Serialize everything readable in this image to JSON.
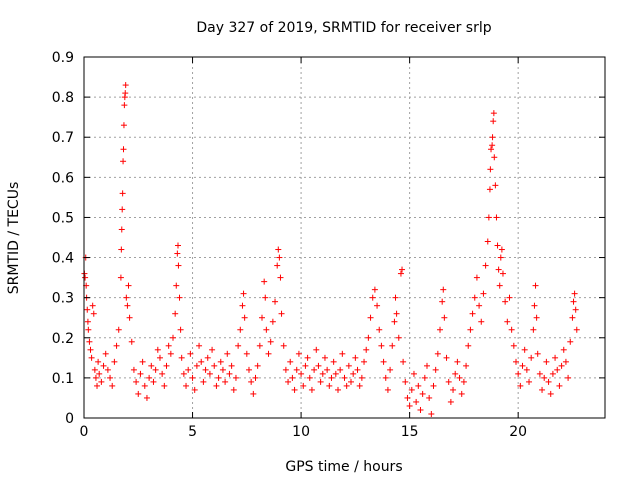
{
  "chart_data": {
    "type": "scatter",
    "title": "Day 327 of 2019, SRMTID for receiver srlp",
    "xlabel": "GPS time / hours",
    "ylabel": "SRMTID / TECUs",
    "xlim": [
      0,
      24
    ],
    "ylim": [
      0,
      0.9
    ],
    "xticks": [
      0,
      5,
      10,
      15,
      20
    ],
    "xtick_labels": [
      "0",
      "5",
      "10",
      "15",
      "20"
    ],
    "yticks": [
      0,
      0.1,
      0.2,
      0.3,
      0.4,
      0.5,
      0.6,
      0.7,
      0.8,
      0.9
    ],
    "ytick_labels": [
      "0",
      "0.1",
      "0.2",
      "0.3",
      "0.4",
      "0.5",
      "0.6",
      "0.7",
      "0.8",
      "0.9"
    ],
    "grid": true,
    "marker": "plus",
    "color": "#ff0000",
    "series": [
      {
        "name": "SRMTID",
        "points": [
          [
            0.02,
            0.36
          ],
          [
            0.05,
            0.35
          ],
          [
            0.08,
            0.4
          ],
          [
            0.1,
            0.33
          ],
          [
            0.12,
            0.3
          ],
          [
            0.15,
            0.27
          ],
          [
            0.18,
            0.24
          ],
          [
            0.2,
            0.22
          ],
          [
            0.25,
            0.19
          ],
          [
            0.3,
            0.17
          ],
          [
            0.35,
            0.15
          ],
          [
            0.4,
            0.28
          ],
          [
            0.45,
            0.26
          ],
          [
            0.5,
            0.12
          ],
          [
            0.55,
            0.1
          ],
          [
            0.6,
            0.08
          ],
          [
            0.65,
            0.14
          ],
          [
            0.7,
            0.11
          ],
          [
            0.8,
            0.09
          ],
          [
            0.9,
            0.13
          ],
          [
            1.0,
            0.16
          ],
          [
            1.1,
            0.12
          ],
          [
            1.2,
            0.1
          ],
          [
            1.3,
            0.08
          ],
          [
            1.4,
            0.14
          ],
          [
            1.5,
            0.18
          ],
          [
            1.6,
            0.22
          ],
          [
            1.7,
            0.35
          ],
          [
            1.72,
            0.42
          ],
          [
            1.74,
            0.47
          ],
          [
            1.76,
            0.52
          ],
          [
            1.78,
            0.56
          ],
          [
            1.8,
            0.64
          ],
          [
            1.82,
            0.67
          ],
          [
            1.84,
            0.73
          ],
          [
            1.86,
            0.78
          ],
          [
            1.88,
            0.8
          ],
          [
            1.9,
            0.81
          ],
          [
            1.92,
            0.83
          ],
          [
            1.95,
            0.3
          ],
          [
            2.0,
            0.28
          ],
          [
            2.05,
            0.33
          ],
          [
            2.1,
            0.25
          ],
          [
            2.2,
            0.19
          ],
          [
            2.3,
            0.12
          ],
          [
            2.4,
            0.09
          ],
          [
            2.5,
            0.06
          ],
          [
            2.6,
            0.11
          ],
          [
            2.7,
            0.14
          ],
          [
            2.8,
            0.08
          ],
          [
            2.9,
            0.05
          ],
          [
            3.0,
            0.1
          ],
          [
            3.1,
            0.13
          ],
          [
            3.2,
            0.09
          ],
          [
            3.3,
            0.12
          ],
          [
            3.4,
            0.17
          ],
          [
            3.5,
            0.15
          ],
          [
            3.6,
            0.11
          ],
          [
            3.7,
            0.08
          ],
          [
            3.8,
            0.13
          ],
          [
            3.9,
            0.18
          ],
          [
            4.0,
            0.16
          ],
          [
            4.1,
            0.2
          ],
          [
            4.2,
            0.26
          ],
          [
            4.25,
            0.33
          ],
          [
            4.3,
            0.41
          ],
          [
            4.33,
            0.43
          ],
          [
            4.35,
            0.38
          ],
          [
            4.4,
            0.3
          ],
          [
            4.45,
            0.22
          ],
          [
            4.5,
            0.15
          ],
          [
            4.6,
            0.11
          ],
          [
            4.7,
            0.08
          ],
          [
            4.8,
            0.12
          ],
          [
            4.9,
            0.16
          ],
          [
            5.0,
            0.1
          ],
          [
            5.1,
            0.07
          ],
          [
            5.2,
            0.13
          ],
          [
            5.3,
            0.18
          ],
          [
            5.4,
            0.14
          ],
          [
            5.5,
            0.09
          ],
          [
            5.6,
            0.12
          ],
          [
            5.7,
            0.15
          ],
          [
            5.8,
            0.11
          ],
          [
            5.9,
            0.17
          ],
          [
            6.0,
            0.13
          ],
          [
            6.1,
            0.08
          ],
          [
            6.2,
            0.1
          ],
          [
            6.3,
            0.14
          ],
          [
            6.4,
            0.12
          ],
          [
            6.5,
            0.09
          ],
          [
            6.6,
            0.16
          ],
          [
            6.7,
            0.11
          ],
          [
            6.8,
            0.13
          ],
          [
            6.9,
            0.07
          ],
          [
            7.0,
            0.1
          ],
          [
            7.1,
            0.18
          ],
          [
            7.2,
            0.22
          ],
          [
            7.3,
            0.28
          ],
          [
            7.35,
            0.31
          ],
          [
            7.4,
            0.25
          ],
          [
            7.5,
            0.16
          ],
          [
            7.6,
            0.12
          ],
          [
            7.7,
            0.09
          ],
          [
            7.8,
            0.06
          ],
          [
            7.9,
            0.1
          ],
          [
            8.0,
            0.13
          ],
          [
            8.1,
            0.18
          ],
          [
            8.2,
            0.25
          ],
          [
            8.3,
            0.34
          ],
          [
            8.35,
            0.3
          ],
          [
            8.4,
            0.22
          ],
          [
            8.5,
            0.16
          ],
          [
            8.6,
            0.19
          ],
          [
            8.7,
            0.24
          ],
          [
            8.8,
            0.29
          ],
          [
            8.9,
            0.38
          ],
          [
            8.95,
            0.42
          ],
          [
            9.0,
            0.4
          ],
          [
            9.05,
            0.35
          ],
          [
            9.1,
            0.26
          ],
          [
            9.2,
            0.18
          ],
          [
            9.3,
            0.12
          ],
          [
            9.4,
            0.09
          ],
          [
            9.5,
            0.14
          ],
          [
            9.6,
            0.1
          ],
          [
            9.7,
            0.07
          ],
          [
            9.8,
            0.12
          ],
          [
            9.9,
            0.16
          ],
          [
            10.0,
            0.11
          ],
          [
            10.1,
            0.08
          ],
          [
            10.2,
            0.13
          ],
          [
            10.3,
            0.15
          ],
          [
            10.4,
            0.1
          ],
          [
            10.5,
            0.07
          ],
          [
            10.6,
            0.12
          ],
          [
            10.7,
            0.17
          ],
          [
            10.8,
            0.13
          ],
          [
            10.9,
            0.09
          ],
          [
            11.0,
            0.11
          ],
          [
            11.1,
            0.15
          ],
          [
            11.2,
            0.12
          ],
          [
            11.3,
            0.08
          ],
          [
            11.4,
            0.1
          ],
          [
            11.5,
            0.14
          ],
          [
            11.6,
            0.11
          ],
          [
            11.7,
            0.07
          ],
          [
            11.8,
            0.12
          ],
          [
            11.9,
            0.16
          ],
          [
            12.0,
            0.1
          ],
          [
            12.1,
            0.08
          ],
          [
            12.2,
            0.13
          ],
          [
            12.3,
            0.09
          ],
          [
            12.4,
            0.11
          ],
          [
            12.5,
            0.15
          ],
          [
            12.6,
            0.12
          ],
          [
            12.7,
            0.08
          ],
          [
            12.8,
            0.1
          ],
          [
            12.9,
            0.14
          ],
          [
            13.0,
            0.17
          ],
          [
            13.1,
            0.2
          ],
          [
            13.2,
            0.25
          ],
          [
            13.3,
            0.3
          ],
          [
            13.4,
            0.32
          ],
          [
            13.5,
            0.28
          ],
          [
            13.6,
            0.22
          ],
          [
            13.7,
            0.18
          ],
          [
            13.8,
            0.14
          ],
          [
            13.9,
            0.1
          ],
          [
            14.0,
            0.07
          ],
          [
            14.1,
            0.12
          ],
          [
            14.2,
            0.18
          ],
          [
            14.3,
            0.24
          ],
          [
            14.35,
            0.3
          ],
          [
            14.4,
            0.26
          ],
          [
            14.5,
            0.2
          ],
          [
            14.6,
            0.36
          ],
          [
            14.65,
            0.37
          ],
          [
            14.7,
            0.14
          ],
          [
            14.8,
            0.09
          ],
          [
            14.9,
            0.05
          ],
          [
            15.0,
            0.03
          ],
          [
            15.1,
            0.07
          ],
          [
            15.2,
            0.11
          ],
          [
            15.3,
            0.04
          ],
          [
            15.4,
            0.08
          ],
          [
            15.5,
            0.02
          ],
          [
            15.6,
            0.06
          ],
          [
            15.7,
            0.1
          ],
          [
            15.8,
            0.13
          ],
          [
            15.9,
            0.05
          ],
          [
            16.0,
            0.01
          ],
          [
            16.1,
            0.08
          ],
          [
            16.2,
            0.12
          ],
          [
            16.3,
            0.16
          ],
          [
            16.4,
            0.22
          ],
          [
            16.5,
            0.29
          ],
          [
            16.55,
            0.32
          ],
          [
            16.6,
            0.25
          ],
          [
            16.7,
            0.15
          ],
          [
            16.8,
            0.09
          ],
          [
            16.9,
            0.04
          ],
          [
            17.0,
            0.07
          ],
          [
            17.1,
            0.11
          ],
          [
            17.2,
            0.14
          ],
          [
            17.3,
            0.1
          ],
          [
            17.4,
            0.06
          ],
          [
            17.5,
            0.09
          ],
          [
            17.6,
            0.13
          ],
          [
            17.7,
            0.18
          ],
          [
            17.8,
            0.22
          ],
          [
            17.9,
            0.26
          ],
          [
            18.0,
            0.3
          ],
          [
            18.1,
            0.35
          ],
          [
            18.2,
            0.28
          ],
          [
            18.3,
            0.24
          ],
          [
            18.4,
            0.31
          ],
          [
            18.5,
            0.38
          ],
          [
            18.6,
            0.44
          ],
          [
            18.65,
            0.5
          ],
          [
            18.7,
            0.57
          ],
          [
            18.72,
            0.62
          ],
          [
            18.75,
            0.67
          ],
          [
            18.8,
            0.68
          ],
          [
            18.82,
            0.7
          ],
          [
            18.85,
            0.74
          ],
          [
            18.88,
            0.76
          ],
          [
            18.9,
            0.65
          ],
          [
            18.95,
            0.58
          ],
          [
            19.0,
            0.5
          ],
          [
            19.05,
            0.43
          ],
          [
            19.1,
            0.37
          ],
          [
            19.15,
            0.33
          ],
          [
            19.2,
            0.4
          ],
          [
            19.25,
            0.42
          ],
          [
            19.3,
            0.36
          ],
          [
            19.4,
            0.29
          ],
          [
            19.5,
            0.24
          ],
          [
            19.6,
            0.3
          ],
          [
            19.7,
            0.22
          ],
          [
            19.8,
            0.18
          ],
          [
            19.9,
            0.14
          ],
          [
            20.0,
            0.11
          ],
          [
            20.1,
            0.08
          ],
          [
            20.2,
            0.13
          ],
          [
            20.3,
            0.17
          ],
          [
            20.4,
            0.12
          ],
          [
            20.5,
            0.09
          ],
          [
            20.6,
            0.15
          ],
          [
            20.7,
            0.22
          ],
          [
            20.75,
            0.28
          ],
          [
            20.8,
            0.33
          ],
          [
            20.85,
            0.25
          ],
          [
            20.9,
            0.16
          ],
          [
            21.0,
            0.11
          ],
          [
            21.1,
            0.07
          ],
          [
            21.2,
            0.1
          ],
          [
            21.3,
            0.14
          ],
          [
            21.4,
            0.09
          ],
          [
            21.5,
            0.06
          ],
          [
            21.6,
            0.11
          ],
          [
            21.7,
            0.15
          ],
          [
            21.8,
            0.12
          ],
          [
            21.9,
            0.08
          ],
          [
            22.0,
            0.13
          ],
          [
            22.1,
            0.17
          ],
          [
            22.2,
            0.14
          ],
          [
            22.3,
            0.1
          ],
          [
            22.4,
            0.19
          ],
          [
            22.5,
            0.25
          ],
          [
            22.55,
            0.29
          ],
          [
            22.6,
            0.31
          ],
          [
            22.65,
            0.27
          ],
          [
            22.7,
            0.22
          ]
        ]
      }
    ]
  }
}
